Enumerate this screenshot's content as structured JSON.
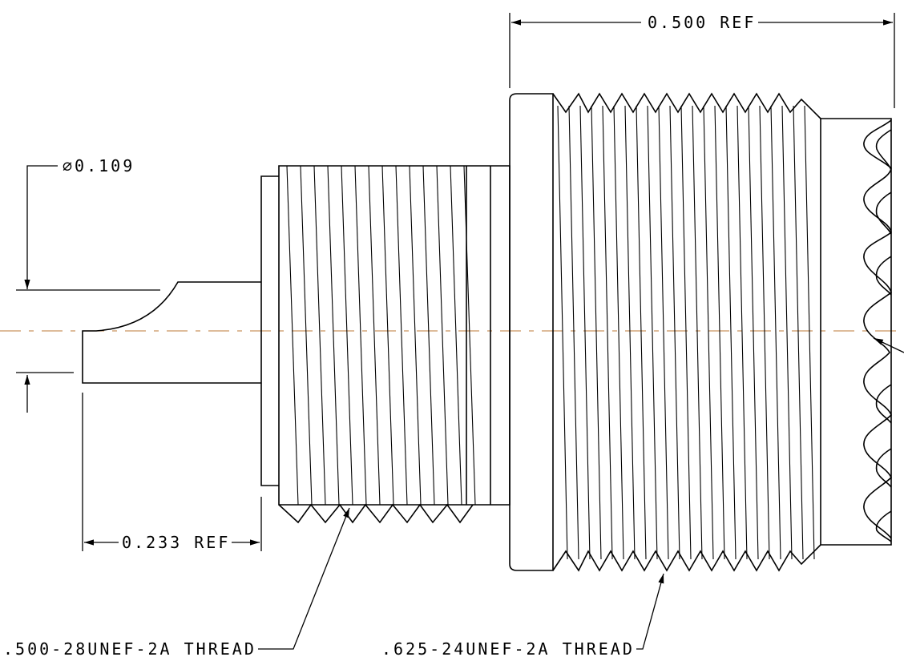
{
  "dimensions": {
    "overall_ref": "0.500 REF",
    "pin_diameter": "⌀0.109",
    "pin_length_ref": "0.233 REF"
  },
  "callouts": {
    "small_thread": ".500-28UNEF-2A THREAD",
    "large_thread": ".625-24UNEF-2A THREAD"
  },
  "colors": {
    "line": "#000000",
    "centerline": "#c9955f",
    "background": "#ffffff"
  }
}
